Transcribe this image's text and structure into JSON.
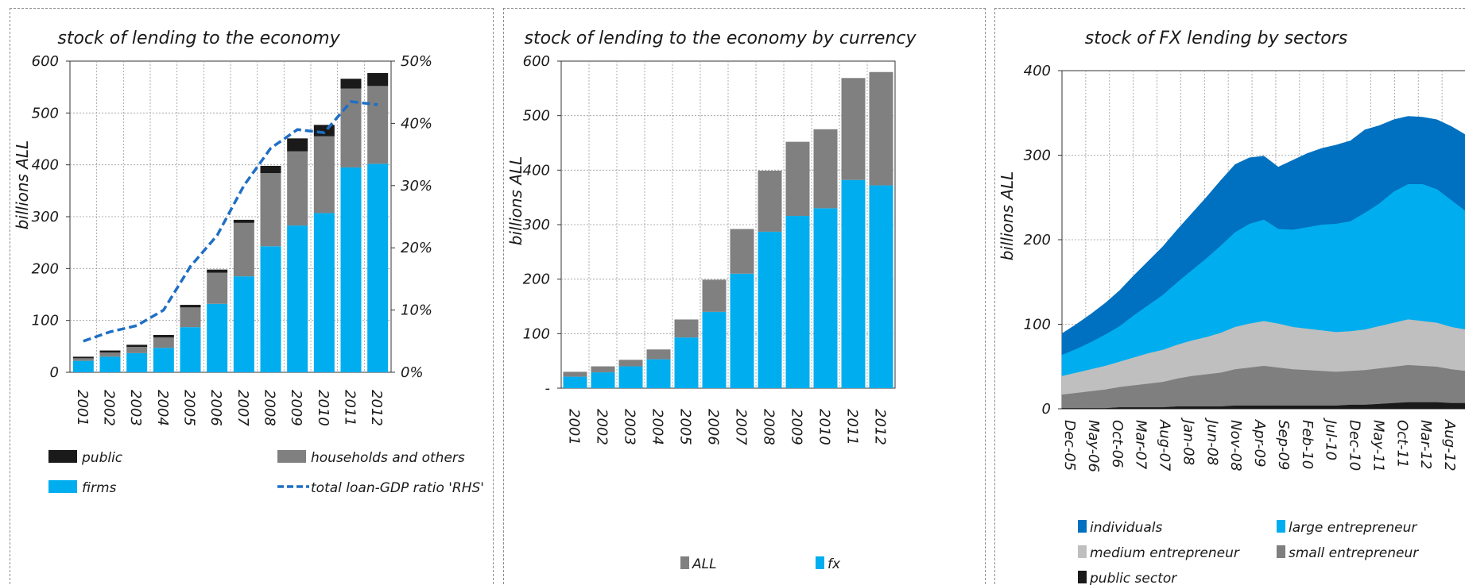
{
  "chart_data": [
    {
      "type": "bar",
      "stacked": true,
      "title": "stock of lending to the economy",
      "ylabel": "billions ALL",
      "ylim": [
        0,
        600
      ],
      "y2lim": [
        0,
        50
      ],
      "yticks": [
        "0",
        "100",
        "200",
        "300",
        "400",
        "500",
        "600"
      ],
      "y2ticks": [
        "0%",
        "10%",
        "20%",
        "30%",
        "40%",
        "50%"
      ],
      "categories": [
        "2001",
        "2002",
        "2003",
        "2004",
        "2005",
        "2006",
        "2007",
        "2008",
        "2009",
        "2010",
        "2011",
        "2012"
      ],
      "series": [
        {
          "name": "firms",
          "color": "#00aeef",
          "values": [
            22,
            30,
            37,
            47,
            87,
            132,
            185,
            243,
            283,
            307,
            395,
            402
          ]
        },
        {
          "name": "households and others",
          "color": "#808080",
          "values": [
            5,
            8,
            12,
            20,
            38,
            60,
            103,
            141,
            143,
            148,
            152,
            150
          ]
        },
        {
          "name": "public",
          "color": "#1a1a1a",
          "values": [
            3,
            4,
            4,
            5,
            5,
            6,
            6,
            14,
            25,
            22,
            19,
            25
          ]
        }
      ],
      "line_series": {
        "name": "total loan-GDP ratio 'RHS'",
        "color": "#1f6fc5",
        "axis": "right",
        "values": [
          5,
          6.5,
          7.5,
          10,
          17,
          22,
          30,
          36,
          39,
          38.5,
          43.5,
          43
        ]
      },
      "grid": true
    },
    {
      "type": "bar",
      "stacked": true,
      "title": "stock of lending to the economy by currency",
      "ylabel": "billions ALL",
      "ylim": [
        0,
        600
      ],
      "yticks": [
        "-",
        "100",
        "200",
        "300",
        "400",
        "500",
        "600"
      ],
      "categories": [
        "2001",
        "2002",
        "2003",
        "2004",
        "2005",
        "2006",
        "2007",
        "2008",
        "2009",
        "2010",
        "2011",
        "2012"
      ],
      "series": [
        {
          "name": "fx",
          "color": "#00aeef",
          "values": [
            21,
            29,
            40,
            53,
            93,
            140,
            210,
            287,
            316,
            330,
            382,
            372
          ]
        },
        {
          "name": "ALL",
          "color": "#808080",
          "values": [
            9,
            11,
            12,
            18,
            33,
            59,
            82,
            112,
            136,
            145,
            187,
            208
          ]
        }
      ],
      "grid": true
    },
    {
      "type": "area",
      "stacked": true,
      "title": "stock of FX lending by sectors",
      "ylabel": "billions ALL",
      "ylim": [
        0,
        400
      ],
      "yticks": [
        "0",
        "100",
        "200",
        "300",
        "400"
      ],
      "x_labels": [
        "Dec-05",
        "May-06",
        "Oct-06",
        "Mar-07",
        "Aug-07",
        "Jan-08",
        "Jun-08",
        "Nov-08",
        "Apr-09",
        "Sep-09",
        "Feb-10",
        "Jul-10",
        "Dec-10",
        "May-11",
        "Oct-11",
        "Mar-12",
        "Aug-12"
      ],
      "x": [
        "Dec-05",
        "Mar-06",
        "Jun-06",
        "Sep-06",
        "Dec-06",
        "Mar-07",
        "Jun-07",
        "Sep-07",
        "Dec-07",
        "Mar-08",
        "Jun-08",
        "Sep-08",
        "Dec-08",
        "Mar-09",
        "Jun-09",
        "Sep-09",
        "Dec-09",
        "Mar-10",
        "Jun-10",
        "Sep-10",
        "Dec-10",
        "Mar-11",
        "Jun-11",
        "Sep-11",
        "Dec-11",
        "Mar-12",
        "Jun-12",
        "Sep-12",
        "Dec-12"
      ],
      "series": [
        {
          "name": "public sector",
          "color": "#1a1a1a",
          "values": [
            1,
            1,
            1,
            1,
            2,
            2,
            2,
            2,
            3,
            3,
            3,
            3,
            4,
            4,
            4,
            4,
            4,
            4,
            4,
            4,
            5,
            5,
            6,
            7,
            8,
            8,
            8,
            7,
            7
          ]
        },
        {
          "name": "small entrepreneur",
          "color": "#7f7f7f",
          "values": [
            16,
            18,
            20,
            22,
            24,
            26,
            28,
            30,
            33,
            36,
            38,
            40,
            43,
            45,
            47,
            45,
            43,
            42,
            41,
            40,
            40,
            41,
            42,
            43,
            44,
            43,
            42,
            40,
            38
          ]
        },
        {
          "name": "medium entrepreneur",
          "color": "#bfbfbf",
          "values": [
            22,
            24,
            26,
            28,
            30,
            33,
            36,
            38,
            40,
            42,
            44,
            47,
            50,
            52,
            53,
            52,
            50,
            49,
            48,
            47,
            47,
            48,
            50,
            52,
            54,
            53,
            52,
            50,
            49
          ]
        },
        {
          "name": "large entrepreneur",
          "color": "#00aeef",
          "values": [
            25,
            28,
            32,
            37,
            42,
            50,
            57,
            65,
            74,
            83,
            93,
            103,
            112,
            118,
            120,
            112,
            115,
            120,
            125,
            128,
            130,
            138,
            145,
            155,
            160,
            162,
            158,
            150,
            140
          ]
        },
        {
          "name": "individuals",
          "color": "#0070c0",
          "values": [
            25,
            29,
            33,
            37,
            42,
            47,
            52,
            57,
            62,
            67,
            72,
            77,
            80,
            78,
            75,
            73,
            82,
            87,
            90,
            93,
            95,
            98,
            92,
            85,
            80,
            79,
            82,
            87,
            90
          ]
        }
      ],
      "grid": true
    }
  ]
}
